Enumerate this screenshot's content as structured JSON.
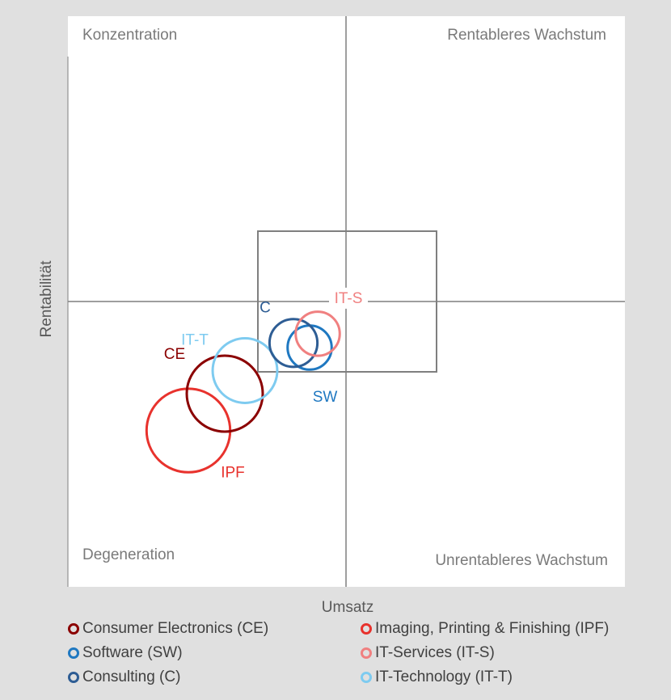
{
  "chart_data": {
    "type": "bubble",
    "xlabel": "Umsatz",
    "ylabel": "Rentabilität",
    "quadrants": {
      "top_left": "Konzentration",
      "top_right": "Rentableres Wachstum",
      "bottom_left": "Degeneration",
      "bottom_right": "Unrentableres Wachstum"
    },
    "series": [
      {
        "key": "CE",
        "name": "Consumer Electronics (CE)",
        "label": "CE",
        "color": "#8b0000",
        "x": -3.0,
        "y": -2.0,
        "size": 1.0
      },
      {
        "key": "IPF",
        "name": "Imaging, Printing & Finishing (IPF)",
        "label": "IPF",
        "color": "#e8322d",
        "x": -3.9,
        "y": -2.8,
        "size": 1.1
      },
      {
        "key": "SW",
        "name": "Software (SW)",
        "label": "SW",
        "color": "#1f78c1",
        "x": -0.9,
        "y": -1.0,
        "size": 0.58
      },
      {
        "key": "IT-S",
        "name": "IT-Services (IT-S)",
        "label": "IT-S",
        "color": "#f08080",
        "x": -0.7,
        "y": -0.7,
        "size": 0.58
      },
      {
        "key": "C",
        "name": "Consulting (C)",
        "label": "C",
        "color": "#2e5d94",
        "x": -1.3,
        "y": -0.9,
        "size": 0.63
      },
      {
        "key": "IT-T",
        "name": "IT-Technology (IT-T)",
        "label": "IT-T",
        "color": "#7ecbf0",
        "x": -2.5,
        "y": -1.5,
        "size": 0.85
      }
    ]
  },
  "legend_order": [
    [
      "CE",
      "IPF"
    ],
    [
      "SW",
      "IT-S"
    ],
    [
      "C",
      "IT-T"
    ]
  ]
}
